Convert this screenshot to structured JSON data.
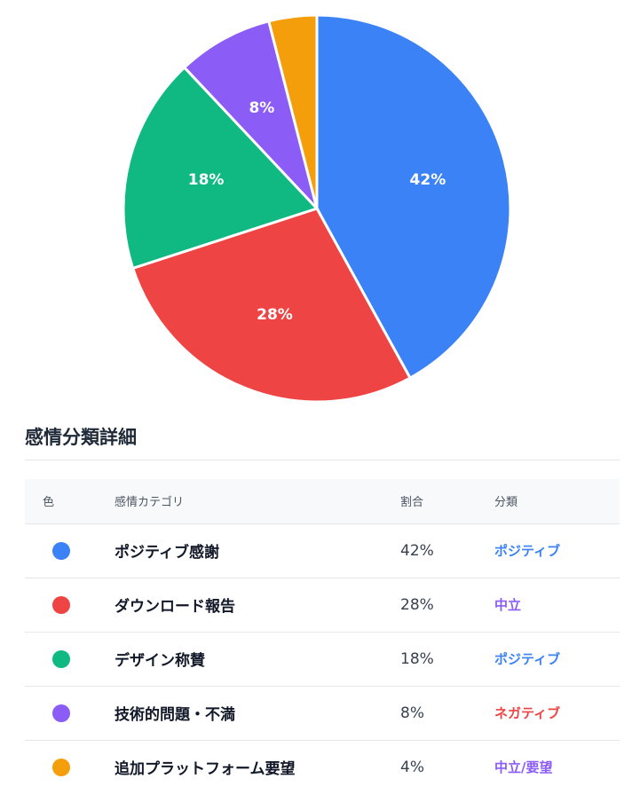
{
  "chart_data": {
    "type": "pie",
    "categories": [
      "ポジティブ感謝",
      "ダウンロード報告",
      "デザイン称賛",
      "技術的問題・不満",
      "追加プラットフォーム要望"
    ],
    "values": [
      42,
      28,
      18,
      8,
      4
    ],
    "labels": [
      "42%",
      "28%",
      "18%",
      "8%",
      ""
    ],
    "colors": [
      "#3b82f6",
      "#ef4444",
      "#10b981",
      "#8b5cf6",
      "#f59e0b"
    ],
    "start_angle": "12 o'clock",
    "direction": "clockwise"
  },
  "section": {
    "title": "感情分類詳細"
  },
  "table": {
    "headers": {
      "color": "色",
      "category": "感情カテゴリ",
      "ratio": "割合",
      "classification": "分類"
    },
    "rows": [
      {
        "color": "#3b82f6",
        "category": "ポジティブ感謝",
        "ratio": "42%",
        "classification": "ポジティブ",
        "class_color": "#3b82f6"
      },
      {
        "color": "#ef4444",
        "category": "ダウンロード報告",
        "ratio": "28%",
        "classification": "中立",
        "class_color": "#8b5cf6"
      },
      {
        "color": "#10b981",
        "category": "デザイン称賛",
        "ratio": "18%",
        "classification": "ポジティブ",
        "class_color": "#3b82f6"
      },
      {
        "color": "#8b5cf6",
        "category": "技術的問題・不満",
        "ratio": "8%",
        "classification": "ネガティブ",
        "class_color": "#ef4444"
      },
      {
        "color": "#f59e0b",
        "category": "追加プラットフォーム要望",
        "ratio": "4%",
        "classification": "中立/要望",
        "class_color": "#8b5cf6"
      }
    ]
  }
}
